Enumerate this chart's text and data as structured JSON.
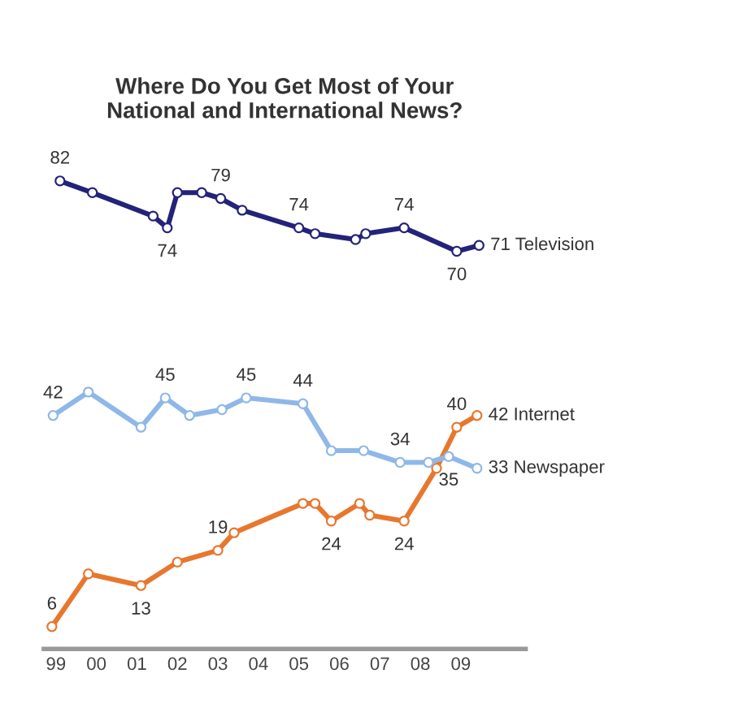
{
  "chart_data": {
    "type": "line",
    "title": "Where Do You Get Most of Your\nNational and International News?",
    "xlim": [
      1998.7,
      2010.6
    ],
    "xticks": [
      {
        "value": 1999,
        "label": "99"
      },
      {
        "value": 2000,
        "label": "00"
      },
      {
        "value": 2001,
        "label": "01"
      },
      {
        "value": 2002,
        "label": "02"
      },
      {
        "value": 2003,
        "label": "03"
      },
      {
        "value": 2004,
        "label": "04"
      },
      {
        "value": 2005,
        "label": "05"
      },
      {
        "value": 2006,
        "label": "06"
      },
      {
        "value": 2007,
        "label": "07"
      },
      {
        "value": 2008,
        "label": "08"
      },
      {
        "value": 2009,
        "label": "09"
      }
    ],
    "tick_labels": "x",
    "grid": false,
    "legend": false,
    "marker": "circle",
    "line_style": "solid",
    "series": [
      {
        "name": "Television",
        "color": "#23237a",
        "x": [
          1999.1,
          1999.9,
          2001.4,
          2001.75,
          2002.0,
          2002.6,
          2003.07,
          2003.6,
          2005.0,
          2005.4,
          2006.4,
          2006.65,
          2007.6,
          2008.9,
          2009.45
        ],
        "values": [
          82,
          80,
          76,
          74,
          80,
          80,
          79,
          77,
          74,
          73,
          72,
          73,
          74,
          70,
          71
        ],
        "value_labels": [
          "82",
          null,
          null,
          "74",
          null,
          null,
          "79",
          null,
          "74",
          null,
          null,
          null,
          "74",
          "70",
          "71"
        ]
      },
      {
        "name": "Internet",
        "color": "#e8772e",
        "x": [
          1998.9,
          1999.8,
          2001.1,
          2002.0,
          2003.0,
          2003.4,
          2005.1,
          2005.4,
          2005.8,
          2006.5,
          2006.75,
          2007.6,
          2008.4,
          2008.9,
          2009.4
        ],
        "values": [
          6,
          15,
          13,
          17,
          19,
          22,
          27,
          27,
          24,
          27,
          25,
          24,
          33,
          40,
          42
        ],
        "value_labels": [
          "6",
          null,
          "13",
          null,
          "19",
          null,
          null,
          null,
          "24",
          null,
          null,
          "24",
          null,
          "40",
          "42"
        ]
      },
      {
        "name": "Newspaper",
        "color": "#8fb8e8",
        "x": [
          1998.93,
          1999.8,
          2001.1,
          2001.7,
          2002.3,
          2003.1,
          2003.7,
          2005.1,
          2005.8,
          2006.6,
          2007.5,
          2008.2,
          2008.7,
          2009.4
        ],
        "values": [
          42,
          46,
          40,
          45,
          42,
          43,
          45,
          44,
          36,
          36,
          34,
          34,
          35,
          33
        ],
        "value_labels": [
          "42",
          null,
          null,
          "45",
          null,
          null,
          "45",
          "44",
          null,
          null,
          "34",
          null,
          "35",
          "33"
        ]
      }
    ]
  }
}
